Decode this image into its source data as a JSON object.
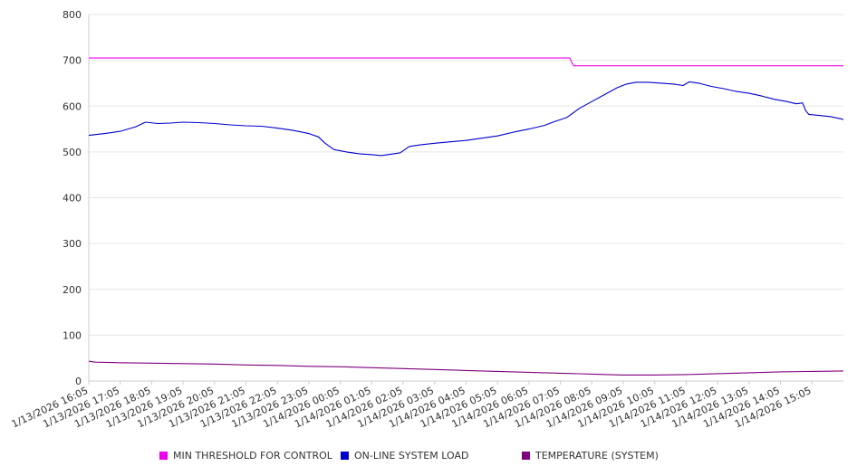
{
  "chart_data": {
    "type": "line",
    "title": "",
    "xlabel": "",
    "ylabel": "",
    "ylim": [
      0,
      800
    ],
    "y_ticks": [
      "0",
      "100",
      "200",
      "300",
      "400",
      "500",
      "600",
      "700",
      "800"
    ],
    "categories": [
      "1/13/2026 16:05",
      "1/13/2026 17:05",
      "1/13/2026 18:05",
      "1/13/2026 19:05",
      "1/13/2026 20:05",
      "1/13/2026 21:05",
      "1/13/2026 22:05",
      "1/13/2026 23:05",
      "1/14/2026 00:05",
      "1/14/2026 01:05",
      "1/14/2026 02:05",
      "1/14/2026 03:05",
      "1/14/2026 04:05",
      "1/14/2026 05:05",
      "1/14/2026 06:05",
      "1/14/2026 07:05",
      "1/14/2026 08:05",
      "1/14/2026 09:05",
      "1/14/2026 10:05",
      "1/14/2026 11:05",
      "1/14/2026 12:05",
      "1/14/2026 13:05",
      "1/14/2026 14:05",
      "1/14/2026 15:05"
    ],
    "x_range": [
      0,
      24
    ],
    "grid": true,
    "legend_position": "bottom",
    "series": [
      {
        "name": "MIN THRESHOLD FOR CONTROL",
        "color": "#ee00ee",
        "points": [
          [
            0,
            705
          ],
          [
            15.3,
            705
          ],
          [
            15.42,
            688
          ],
          [
            24,
            688
          ]
        ]
      },
      {
        "name": "ON-LINE SYSTEM LOAD",
        "color": "#0000cc",
        "points": [
          [
            0,
            536
          ],
          [
            0.5,
            540
          ],
          [
            1,
            545
          ],
          [
            1.5,
            555
          ],
          [
            1.8,
            565
          ],
          [
            2.2,
            562
          ],
          [
            2.6,
            563
          ],
          [
            3,
            565
          ],
          [
            3.5,
            564
          ],
          [
            4,
            562
          ],
          [
            4.5,
            559
          ],
          [
            5,
            557
          ],
          [
            5.5,
            556
          ],
          [
            6,
            552
          ],
          [
            6.5,
            547
          ],
          [
            7,
            540
          ],
          [
            7.3,
            533
          ],
          [
            7.5,
            520
          ],
          [
            7.8,
            505
          ],
          [
            8.2,
            500
          ],
          [
            8.6,
            496
          ],
          [
            9,
            494
          ],
          [
            9.3,
            492
          ],
          [
            9.6,
            495
          ],
          [
            9.9,
            498
          ],
          [
            10.2,
            512
          ],
          [
            10.6,
            516
          ],
          [
            11,
            519
          ],
          [
            11.5,
            522
          ],
          [
            12,
            525
          ],
          [
            12.5,
            530
          ],
          [
            13,
            535
          ],
          [
            13.5,
            543
          ],
          [
            14,
            550
          ],
          [
            14.5,
            558
          ],
          [
            14.8,
            566
          ],
          [
            15.2,
            575
          ],
          [
            15.6,
            595
          ],
          [
            16,
            610
          ],
          [
            16.4,
            625
          ],
          [
            16.8,
            640
          ],
          [
            17.1,
            648
          ],
          [
            17.4,
            652
          ],
          [
            17.8,
            652
          ],
          [
            18.2,
            650
          ],
          [
            18.6,
            648
          ],
          [
            18.9,
            645
          ],
          [
            19.1,
            653
          ],
          [
            19.4,
            650
          ],
          [
            19.8,
            643
          ],
          [
            20.2,
            638
          ],
          [
            20.6,
            632
          ],
          [
            21,
            628
          ],
          [
            21.4,
            622
          ],
          [
            21.8,
            615
          ],
          [
            22.2,
            610
          ],
          [
            22.5,
            605
          ],
          [
            22.7,
            607
          ],
          [
            22.8,
            590
          ],
          [
            22.9,
            582
          ],
          [
            23.2,
            580
          ],
          [
            23.6,
            577
          ],
          [
            24,
            571
          ]
        ]
      },
      {
        "name": "TEMPERATURE (SYSTEM)",
        "color": "#800080",
        "points": [
          [
            0,
            43
          ],
          [
            0.2,
            41
          ],
          [
            1,
            40
          ],
          [
            2,
            39
          ],
          [
            3,
            38
          ],
          [
            4,
            37
          ],
          [
            5,
            35
          ],
          [
            6,
            34
          ],
          [
            7,
            32
          ],
          [
            8,
            31
          ],
          [
            9,
            29
          ],
          [
            10,
            27
          ],
          [
            11,
            25
          ],
          [
            12,
            23
          ],
          [
            13,
            21
          ],
          [
            14,
            19
          ],
          [
            15,
            17
          ],
          [
            16,
            15
          ],
          [
            17,
            13
          ],
          [
            18,
            13
          ],
          [
            19,
            14
          ],
          [
            20,
            16
          ],
          [
            21,
            18
          ],
          [
            22,
            20
          ],
          [
            23,
            21
          ],
          [
            24,
            22
          ]
        ]
      }
    ]
  }
}
